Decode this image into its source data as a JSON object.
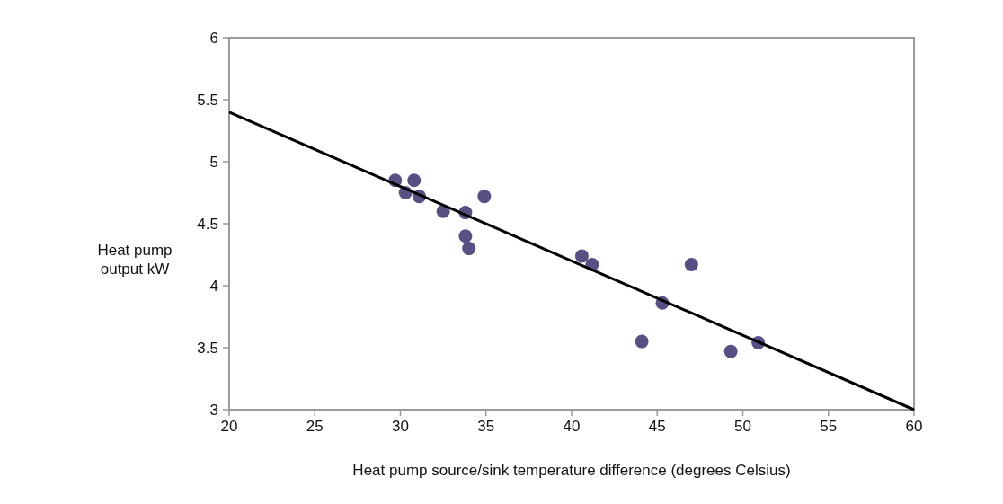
{
  "chart_data": {
    "type": "scatter",
    "xlabel": "Heat pump source/sink temperature difference (degrees Celsius)",
    "ylabel": "Heat pump output kW",
    "xlim": [
      20,
      60
    ],
    "xticks": [
      20,
      25,
      30,
      35,
      40,
      45,
      50,
      55,
      60
    ],
    "ylim": [
      3,
      6
    ],
    "yticks": [
      3,
      {
        "value": 3.5,
        "label": "3.5"
      },
      4,
      {
        "value": 4.5,
        "label": "4.5"
      },
      5,
      {
        "value": 5.5,
        "label": "5.5"
      },
      6
    ],
    "grid": false,
    "marker": "circle",
    "series": [
      {
        "color": "#575082",
        "x": [
          29.7,
          30.8,
          30.3,
          31.1,
          32.5,
          33.8,
          34.9,
          33.8,
          34.0,
          40.6,
          41.2,
          47.0,
          45.3,
          44.1,
          49.3,
          50.9
        ],
        "values": [
          4.85,
          4.85,
          4.75,
          4.72,
          4.6,
          4.59,
          4.72,
          4.4,
          4.3,
          4.24,
          4.17,
          4.17,
          3.86,
          3.55,
          3.47,
          3.54
        ]
      },
      {
        "type": "line",
        "color": "#000000",
        "marker": "none",
        "x": [
          20,
          60
        ],
        "values": [
          5.4,
          3.0
        ]
      }
    ]
  }
}
